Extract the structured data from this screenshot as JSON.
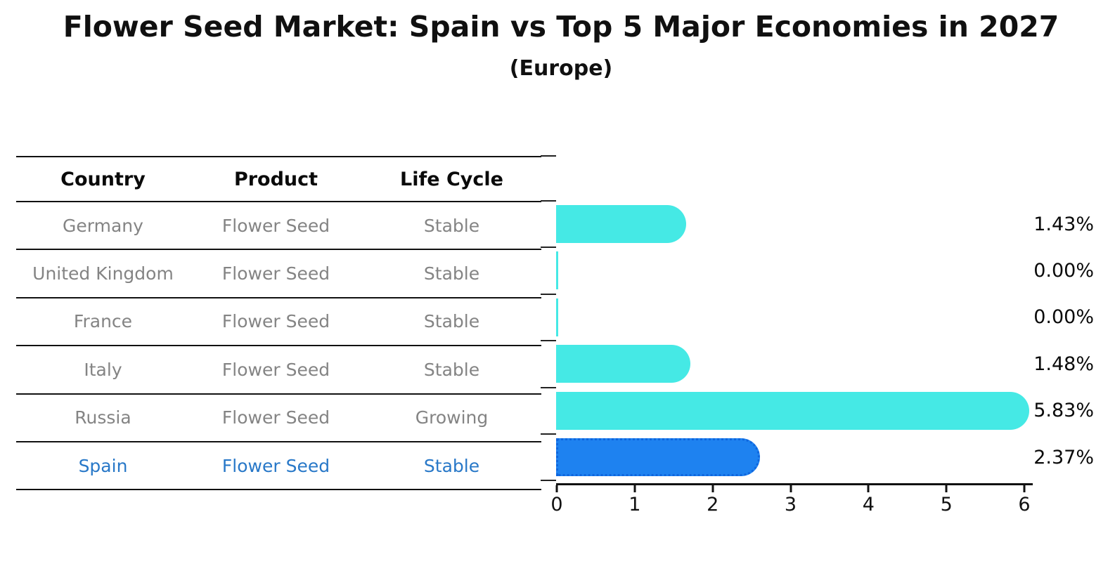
{
  "header": {
    "title": "Flower Seed Market: Spain vs Top 5 Major Economies in 2027",
    "subtitle": "(Europe)"
  },
  "table": {
    "columns": {
      "country": "Country",
      "product": "Product",
      "life_cycle": "Life Cycle"
    },
    "rows": [
      {
        "country": "Germany",
        "product": "Flower Seed",
        "life_cycle": "Stable"
      },
      {
        "country": "United Kingdom",
        "product": "Flower Seed",
        "life_cycle": "Stable"
      },
      {
        "country": "France",
        "product": "Flower Seed",
        "life_cycle": "Stable"
      },
      {
        "country": "Italy",
        "product": "Flower Seed",
        "life_cycle": "Stable"
      },
      {
        "country": "Russia",
        "product": "Flower Seed",
        "life_cycle": "Growing"
      },
      {
        "country": "Spain",
        "product": "Flower Seed",
        "life_cycle": "Stable"
      }
    ]
  },
  "chart_data": {
    "type": "bar",
    "orientation": "horizontal",
    "title": "Flower Seed Market: Spain vs Top 5 Major Economies in 2027 (Europe)",
    "categories": [
      "Germany",
      "United Kingdom",
      "France",
      "Italy",
      "Russia",
      "Spain"
    ],
    "values": [
      1.43,
      0.0,
      0.0,
      1.48,
      5.83,
      2.37
    ],
    "value_labels": [
      "1.43%",
      "0.00%",
      "0.00%",
      "1.48%",
      "5.83%",
      "2.37%"
    ],
    "x_ticks": [
      "0",
      "1",
      "2",
      "3",
      "4",
      "5",
      "6"
    ],
    "xlim": [
      0,
      6
    ],
    "grid": false,
    "legend": "none",
    "bar_color": "#45E9E5",
    "highlight_color": "#1E82F0",
    "highlight_index": 5,
    "highlight_text_color": "#2878C8"
  }
}
